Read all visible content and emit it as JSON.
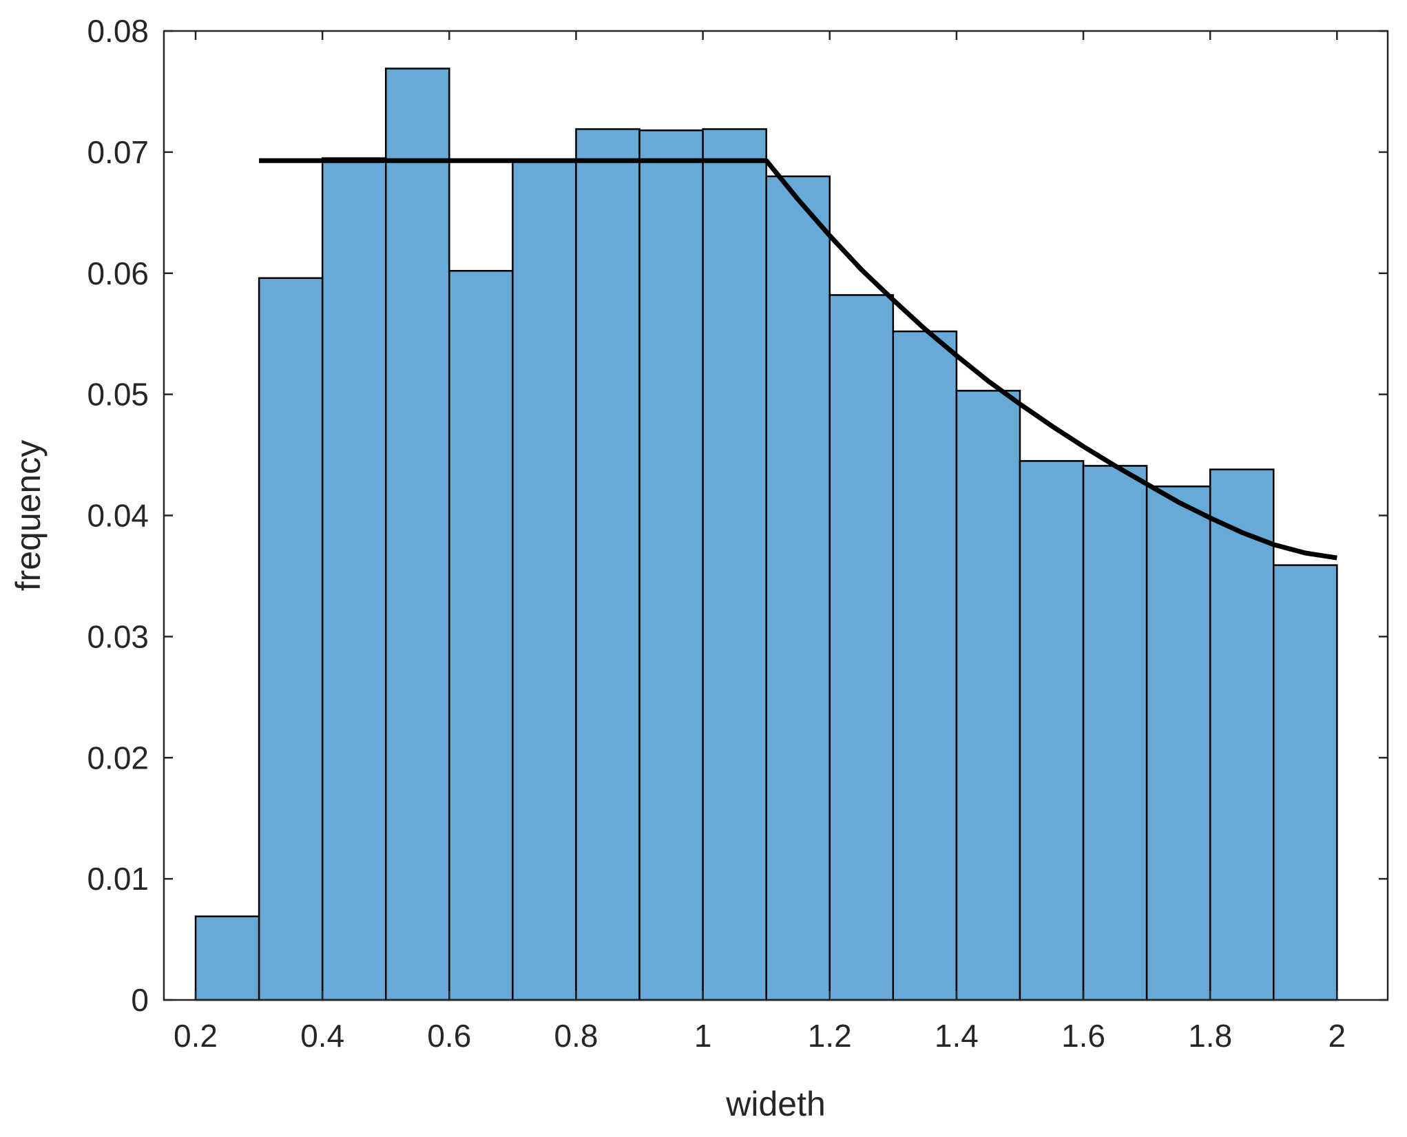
{
  "chart_data": {
    "type": "bar",
    "xlabel": "wideth",
    "ylabel": "frequency",
    "xlim": [
      0.15,
      2.08
    ],
    "ylim": [
      0,
      0.08
    ],
    "grid": false,
    "bar_color": "#67a9d7",
    "edge_color": "#000000",
    "bin_edges": [
      0.2,
      0.3,
      0.4,
      0.5,
      0.6,
      0.7,
      0.8,
      0.9,
      1.0,
      1.1,
      1.2,
      1.3,
      1.4,
      1.5,
      1.6,
      1.7,
      1.8,
      1.9,
      2.0
    ],
    "values": [
      0.0069,
      0.0596,
      0.0695,
      0.0769,
      0.0602,
      0.0693,
      0.0719,
      0.0718,
      0.0719,
      0.068,
      0.0582,
      0.0552,
      0.0503,
      0.0445,
      0.0441,
      0.0424,
      0.0438,
      0.0359
    ],
    "xticks": [
      {
        "value": 0.2,
        "label": "0.2"
      },
      {
        "value": 0.4,
        "label": "0.4"
      },
      {
        "value": 0.6,
        "label": "0.6"
      },
      {
        "value": 0.8,
        "label": "0.8"
      },
      {
        "value": 1.0,
        "label": "1"
      },
      {
        "value": 1.2,
        "label": "1.2"
      },
      {
        "value": 1.4,
        "label": "1.4"
      },
      {
        "value": 1.6,
        "label": "1.6"
      },
      {
        "value": 1.8,
        "label": "1.8"
      },
      {
        "value": 2.0,
        "label": "2"
      }
    ],
    "yticks": [
      {
        "value": 0,
        "label": "0"
      },
      {
        "value": 0.01,
        "label": "0.01"
      },
      {
        "value": 0.02,
        "label": "0.02"
      },
      {
        "value": 0.03,
        "label": "0.03"
      },
      {
        "value": 0.04,
        "label": "0.04"
      },
      {
        "value": 0.05,
        "label": "0.05"
      },
      {
        "value": 0.06,
        "label": "0.06"
      },
      {
        "value": 0.07,
        "label": "0.07"
      },
      {
        "value": 0.08,
        "label": "0.08"
      }
    ],
    "fit_line": {
      "color": "#000000",
      "points": [
        [
          0.3,
          0.0693
        ],
        [
          1.1,
          0.0693
        ],
        [
          1.15,
          0.0661
        ],
        [
          1.2,
          0.0631
        ],
        [
          1.25,
          0.0603
        ],
        [
          1.3,
          0.0578
        ],
        [
          1.35,
          0.0554
        ],
        [
          1.4,
          0.0532
        ],
        [
          1.45,
          0.0511
        ],
        [
          1.5,
          0.0492
        ],
        [
          1.55,
          0.0474
        ],
        [
          1.6,
          0.0457
        ],
        [
          1.65,
          0.0441
        ],
        [
          1.7,
          0.0426
        ],
        [
          1.75,
          0.0411
        ],
        [
          1.8,
          0.0398
        ],
        [
          1.85,
          0.0386
        ],
        [
          1.9,
          0.0376
        ],
        [
          1.95,
          0.0369
        ],
        [
          2.0,
          0.0365
        ]
      ]
    }
  }
}
